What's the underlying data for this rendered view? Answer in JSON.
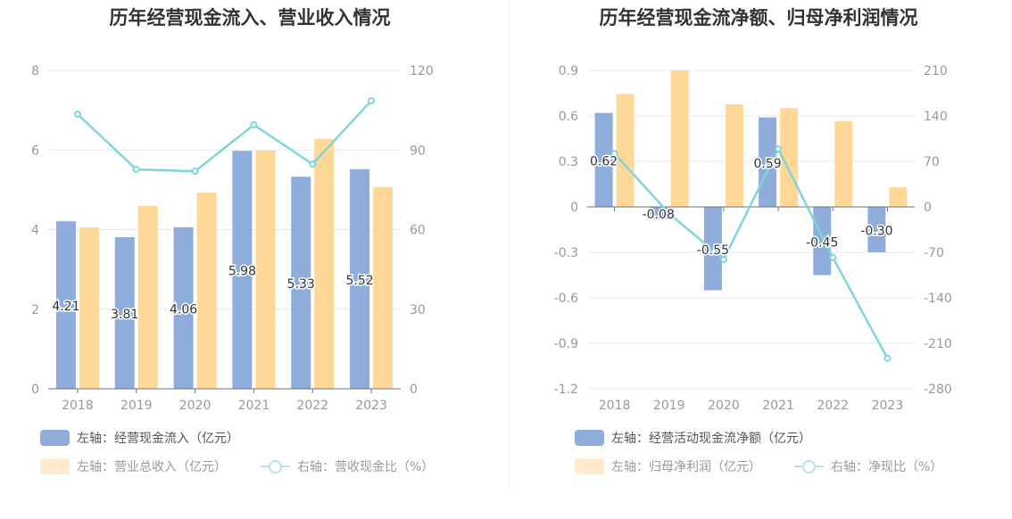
{
  "colors": {
    "bar1": "#8eaddb",
    "bar2": "#ffd898",
    "line": "#7fd6d8",
    "legend_bar2": "#ffebcc"
  },
  "chart_data": [
    {
      "type": "bar",
      "title": "历年经营现金流入、营业收入情况",
      "categories": [
        "2018",
        "2019",
        "2020",
        "2021",
        "2022",
        "2023"
      ],
      "left_axis": {
        "min": 0,
        "max": 8,
        "ticks": [
          "0",
          "2",
          "4",
          "6",
          "8"
        ]
      },
      "right_axis": {
        "min": 0,
        "max": 120,
        "ticks": [
          "0",
          "30",
          "60",
          "90",
          "120"
        ]
      },
      "series": [
        {
          "name": "左轴：经营现金流入（亿元）",
          "kind": "bar",
          "axis": "left",
          "values": [
            4.21,
            3.81,
            4.06,
            5.98,
            5.33,
            5.52
          ],
          "labels": [
            "4.21",
            "3.81",
            "4.06",
            "5.98",
            "5.33",
            "5.52"
          ]
        },
        {
          "name": "左轴：营业总收入（亿元）",
          "kind": "bar",
          "axis": "left",
          "values": [
            4.06,
            4.6,
            4.93,
            5.99,
            6.28,
            5.07
          ]
        },
        {
          "name": "右轴：营收现金比（%）",
          "kind": "line",
          "axis": "right",
          "values": [
            103.5,
            82.7,
            82.0,
            99.5,
            84.7,
            108.6
          ]
        }
      ],
      "grid": true
    },
    {
      "type": "bar",
      "title": "历年经营现金流净额、归母净利润情况",
      "categories": [
        "2018",
        "2019",
        "2020",
        "2021",
        "2022",
        "2023"
      ],
      "left_axis": {
        "min": -1.2,
        "max": 0.9,
        "ticks": [
          "-1.2",
          "-0.9",
          "-0.6",
          "-0.3",
          "0",
          "0.3",
          "0.6",
          "0.9"
        ]
      },
      "right_axis": {
        "min": -280,
        "max": 210,
        "ticks": [
          "-280",
          "-210",
          "-140",
          "-70",
          "0",
          "70",
          "140",
          "210"
        ]
      },
      "series": [
        {
          "name": "左轴：经营活动现金流净额（亿元）",
          "kind": "bar",
          "axis": "left",
          "values": [
            0.62,
            -0.08,
            -0.55,
            0.59,
            -0.45,
            -0.3
          ],
          "labels": [
            "0.62",
            "-0.08",
            "-0.55",
            "0.59",
            "-0.45",
            "-0.30"
          ]
        },
        {
          "name": "左轴：归母净利润（亿元）",
          "kind": "bar",
          "axis": "right",
          "values": [
            174,
            210,
            158,
            152,
            132,
            30
          ]
        },
        {
          "name": "右轴：净现比（%）",
          "kind": "line",
          "axis": "right",
          "values": [
            82,
            -10,
            -81,
            89,
            -78,
            -233
          ]
        }
      ],
      "grid": true
    }
  ]
}
